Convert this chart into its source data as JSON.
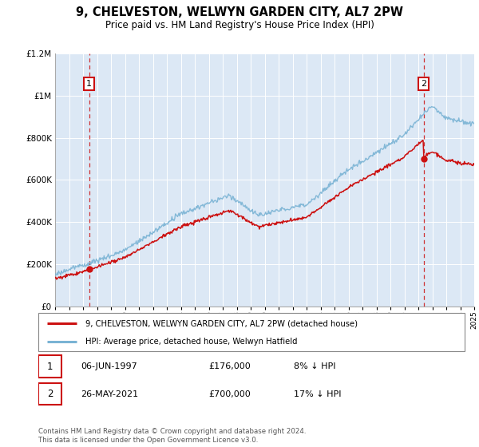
{
  "title": "9, CHELVESTON, WELWYN GARDEN CITY, AL7 2PW",
  "subtitle": "Price paid vs. HM Land Registry's House Price Index (HPI)",
  "x_start_year": 1995,
  "x_end_year": 2025,
  "y_min": 0,
  "y_max": 1200000,
  "y_ticks": [
    0,
    200000,
    400000,
    600000,
    800000,
    1000000,
    1200000
  ],
  "y_tick_labels": [
    "£0",
    "£200K",
    "£400K",
    "£600K",
    "£800K",
    "£1M",
    "£1.2M"
  ],
  "hpi_color": "#7ab3d4",
  "price_color": "#cc1111",
  "background_color": "#dce8f5",
  "sale1_year": 1997.44,
  "sale1_price": 176000,
  "sale1_label": "1",
  "sale2_year": 2021.38,
  "sale2_price": 700000,
  "sale2_label": "2",
  "legend_line1": "9, CHELVESTON, WELWYN GARDEN CITY, AL7 2PW (detached house)",
  "legend_line2": "HPI: Average price, detached house, Welwyn Hatfield",
  "note1_num": "1",
  "note1_date": "06-JUN-1997",
  "note1_price": "£176,000",
  "note1_hpi": "8% ↓ HPI",
  "note2_num": "2",
  "note2_date": "26-MAY-2021",
  "note2_price": "£700,000",
  "note2_hpi": "17% ↓ HPI",
  "footer": "Contains HM Land Registry data © Crown copyright and database right 2024.\nThis data is licensed under the Open Government Licence v3.0."
}
